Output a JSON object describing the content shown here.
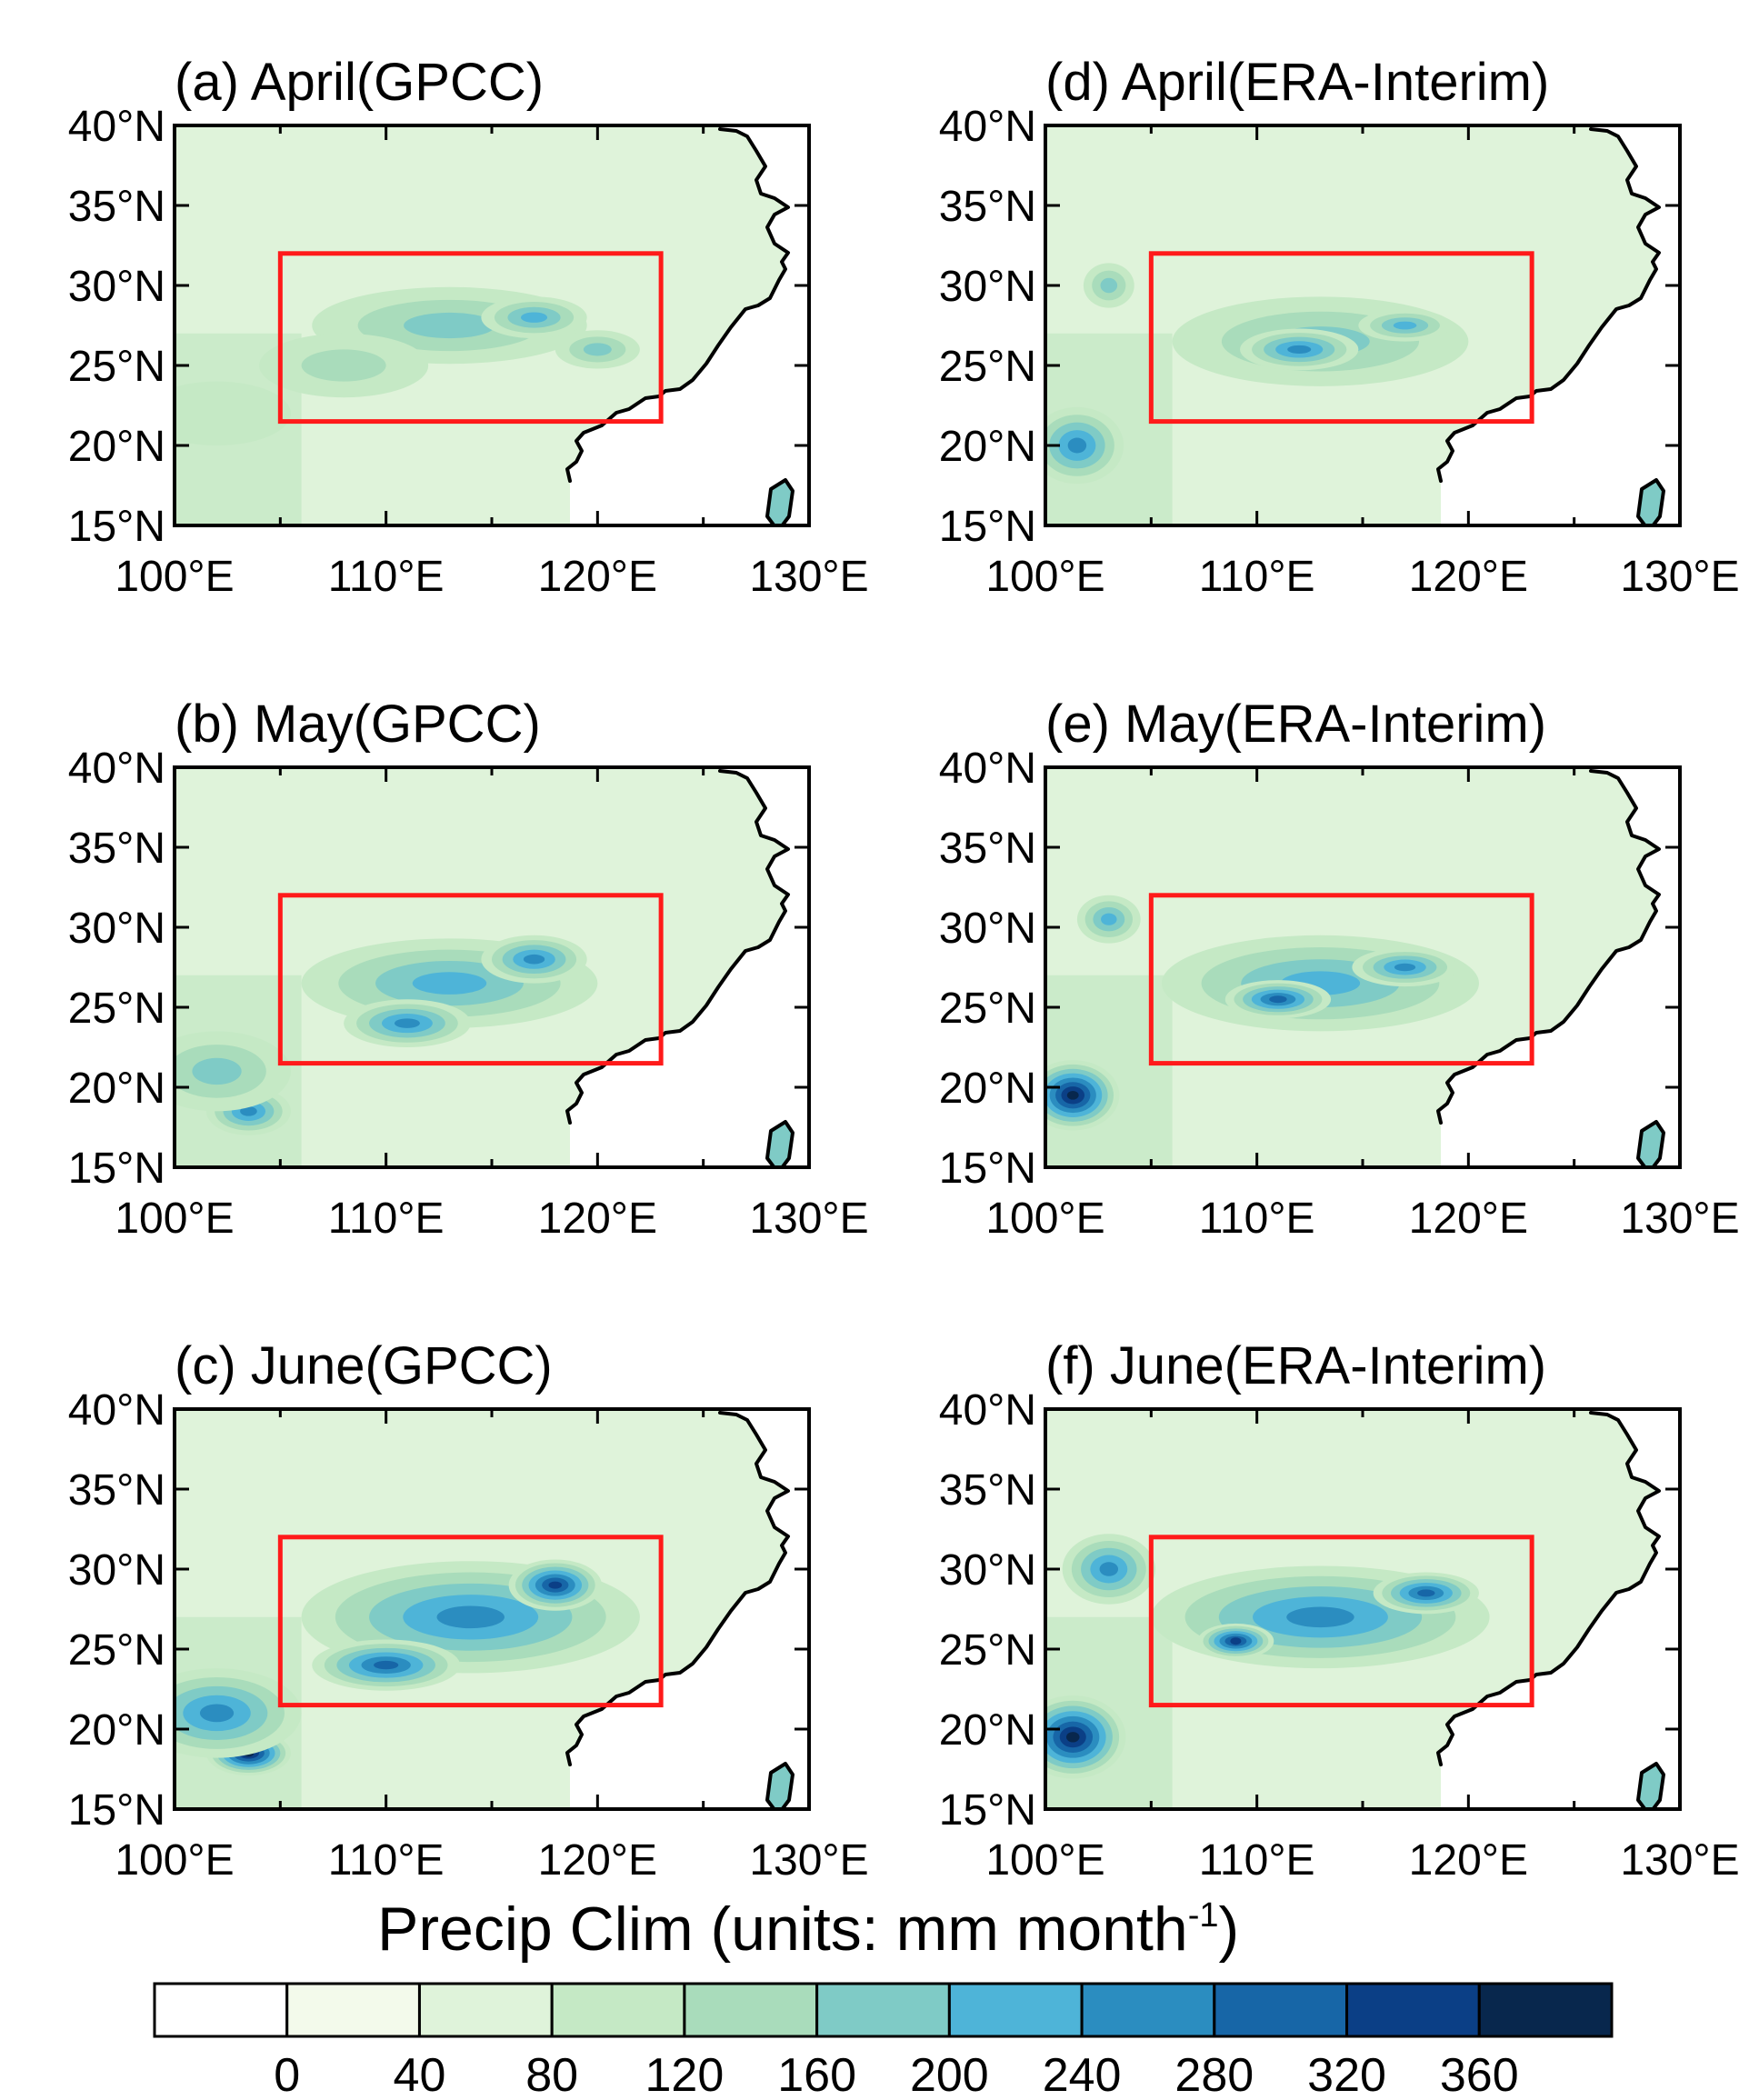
{
  "colors": {
    "box": "#ff1a1a",
    "levels": [
      "#ffffff",
      "#f3faeb",
      "#dff3da",
      "#c5e9c5",
      "#a9dcbb",
      "#7fcbc6",
      "#4eb4d8",
      "#2b8dc0",
      "#1766a7",
      "#0b3f86",
      "#08274d"
    ]
  },
  "colorbar": {
    "title": "Precip Clim (units: mm month",
    "title_sup": "-1",
    "title_close": ")",
    "labels": [
      "0",
      "40",
      "80",
      "120",
      "160",
      "200",
      "240",
      "280",
      "320",
      "360"
    ]
  },
  "chart_data": {
    "type": "heatmap",
    "title": "Precip Clim",
    "units": "mm month-1",
    "xlim": [
      100,
      130
    ],
    "ylim": [
      15,
      40
    ],
    "xticks": [
      100,
      110,
      120,
      130
    ],
    "yticks": [
      15,
      20,
      25,
      30,
      35,
      40
    ],
    "xtick_labels": [
      "100°E",
      "110°E",
      "120°E",
      "130°E"
    ],
    "ytick_labels": [
      "15°N",
      "20°N",
      "25°N",
      "30°N",
      "35°N",
      "40°N"
    ],
    "levels": [
      0,
      40,
      80,
      120,
      160,
      200,
      240,
      280,
      320,
      360
    ],
    "box": {
      "lon": [
        105,
        123
      ],
      "lat": [
        21.5,
        32
      ]
    },
    "panels": [
      {
        "title": "(a) April(GPCC)",
        "dataset": "GPCC",
        "month": "April",
        "blobs": [
          {
            "lon": 113,
            "lat": 27.5,
            "rx": 6.5,
            "ry": 2.4,
            "value": 160
          },
          {
            "lon": 117,
            "lat": 28,
            "rx": 2.5,
            "ry": 1.3,
            "value": 220
          },
          {
            "lon": 120,
            "lat": 26,
            "rx": 2,
            "ry": 1.2,
            "value": 180
          },
          {
            "lon": 108,
            "lat": 25,
            "rx": 4,
            "ry": 2,
            "value": 130
          },
          {
            "lon": 102,
            "lat": 22,
            "rx": 3.5,
            "ry": 2,
            "value": 110
          }
        ]
      },
      {
        "title": "(b) May(GPCC)",
        "dataset": "GPCC",
        "month": "May",
        "blobs": [
          {
            "lon": 113,
            "lat": 26.5,
            "rx": 7,
            "ry": 2.8,
            "value": 210
          },
          {
            "lon": 111,
            "lat": 24,
            "rx": 3,
            "ry": 1.5,
            "value": 270
          },
          {
            "lon": 117,
            "lat": 28,
            "rx": 2.5,
            "ry": 1.5,
            "value": 260
          },
          {
            "lon": 103.5,
            "lat": 18.5,
            "rx": 2,
            "ry": 1.5,
            "value": 250
          },
          {
            "lon": 102,
            "lat": 21,
            "rx": 3.5,
            "ry": 2.5,
            "value": 180
          }
        ]
      },
      {
        "title": "(c) June(GPCC)",
        "dataset": "GPCC",
        "month": "June",
        "blobs": [
          {
            "lon": 114,
            "lat": 27,
            "rx": 8,
            "ry": 3.5,
            "value": 240
          },
          {
            "lon": 118,
            "lat": 29,
            "rx": 2.2,
            "ry": 1.6,
            "value": 330
          },
          {
            "lon": 110,
            "lat": 24,
            "rx": 3.5,
            "ry": 1.6,
            "value": 290
          },
          {
            "lon": 103.5,
            "lat": 18.5,
            "rx": 2,
            "ry": 1.4,
            "value": 370
          },
          {
            "lon": 102,
            "lat": 21,
            "rx": 4,
            "ry": 2.8,
            "value": 250
          }
        ]
      },
      {
        "title": "(d) April(ERA-Interim)",
        "dataset": "ERA-Interim",
        "month": "April",
        "blobs": [
          {
            "lon": 113,
            "lat": 26.5,
            "rx": 7,
            "ry": 2.8,
            "value": 170
          },
          {
            "lon": 112,
            "lat": 26,
            "rx": 2.8,
            "ry": 1.3,
            "value": 240
          },
          {
            "lon": 117,
            "lat": 27.5,
            "rx": 2.2,
            "ry": 1,
            "value": 230
          },
          {
            "lon": 101.5,
            "lat": 20,
            "rx": 2.2,
            "ry": 2.4,
            "value": 250
          },
          {
            "lon": 103,
            "lat": 30,
            "rx": 1.2,
            "ry": 1.4,
            "value": 170
          }
        ]
      },
      {
        "title": "(e) May(ERA-Interim)",
        "dataset": "ERA-Interim",
        "month": "May",
        "blobs": [
          {
            "lon": 113,
            "lat": 26.5,
            "rx": 7.5,
            "ry": 3,
            "value": 220
          },
          {
            "lon": 111,
            "lat": 25.5,
            "rx": 2.5,
            "ry": 1.2,
            "value": 290
          },
          {
            "lon": 117,
            "lat": 27.5,
            "rx": 2.5,
            "ry": 1.2,
            "value": 260
          },
          {
            "lon": 101.3,
            "lat": 19.5,
            "rx": 2.2,
            "ry": 2.2,
            "value": 380
          },
          {
            "lon": 103,
            "lat": 30.5,
            "rx": 1.5,
            "ry": 1.5,
            "value": 220
          }
        ]
      },
      {
        "title": "(f) June(ERA-Interim)",
        "dataset": "ERA-Interim",
        "month": "June",
        "blobs": [
          {
            "lon": 113,
            "lat": 27,
            "rx": 8,
            "ry": 3.2,
            "value": 240
          },
          {
            "lon": 109,
            "lat": 25.5,
            "rx": 1.8,
            "ry": 1.1,
            "value": 320
          },
          {
            "lon": 118,
            "lat": 28.5,
            "rx": 2.5,
            "ry": 1.3,
            "value": 290
          },
          {
            "lon": 101.3,
            "lat": 19.5,
            "rx": 2.5,
            "ry": 2.6,
            "value": 380
          },
          {
            "lon": 103,
            "lat": 30,
            "rx": 2.2,
            "ry": 2.2,
            "value": 260
          }
        ]
      }
    ]
  }
}
